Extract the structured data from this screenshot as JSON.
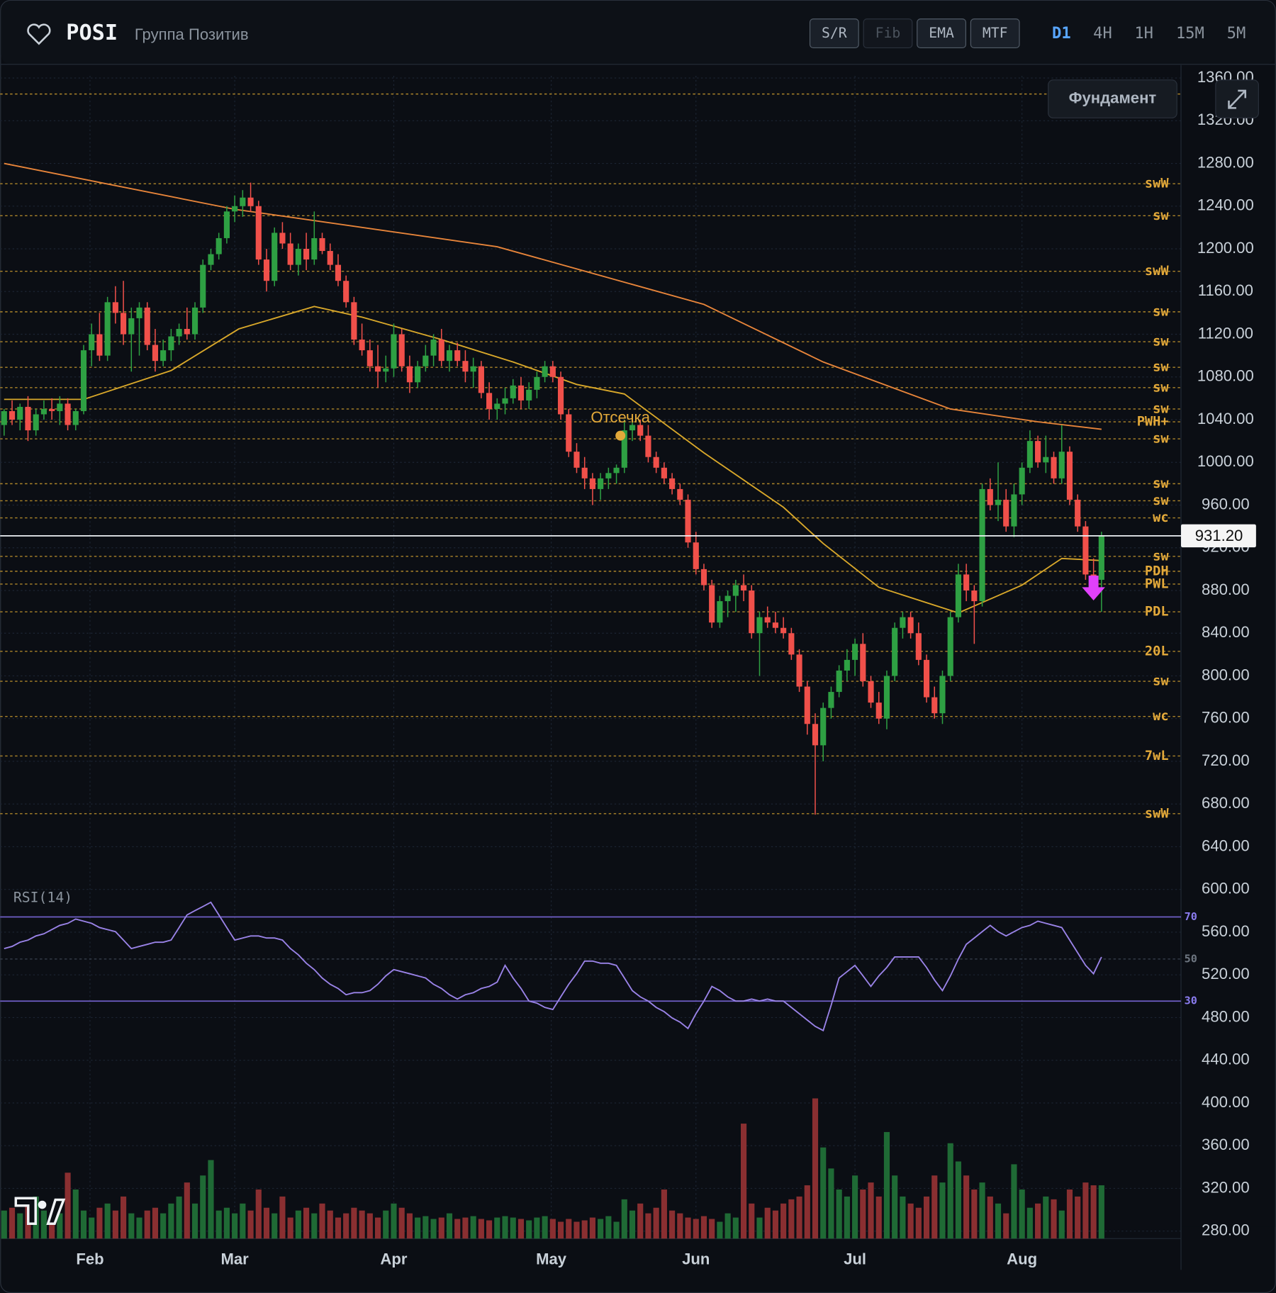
{
  "header": {
    "ticker": "POSI",
    "company": "Группа Позитив",
    "tools": [
      {
        "label": "S/R",
        "enabled": true
      },
      {
        "label": "Fib",
        "enabled": false
      },
      {
        "label": "EMA",
        "enabled": true
      },
      {
        "label": "MTF",
        "enabled": true
      }
    ],
    "timeframes": [
      {
        "label": "D1",
        "active": true
      },
      {
        "label": "4H",
        "active": false
      },
      {
        "label": "1H",
        "active": false
      },
      {
        "label": "15M",
        "active": false
      },
      {
        "label": "5M",
        "active": false
      }
    ],
    "fundament_button": "Фундамент"
  },
  "chart_data": {
    "type": "candlestick",
    "up_color": "#2ea043",
    "down_color": "#f0504a",
    "volume_up_color": "#1f6a35",
    "volume_down_color": "#8a2f31",
    "xlim": [
      -0.5,
      148
    ],
    "xticks": [
      {
        "value": 10.8,
        "label": "Feb"
      },
      {
        "value": 29,
        "label": "Mar"
      },
      {
        "value": 49,
        "label": "Apr"
      },
      {
        "value": 68.8,
        "label": "May"
      },
      {
        "value": 87,
        "label": "Jun"
      },
      {
        "value": 107,
        "label": "Jul"
      },
      {
        "value": 128,
        "label": "Aug"
      }
    ],
    "ylim": [
      273,
      1362
    ],
    "yticks": [
      {
        "value": 1360,
        "label": "1360.00"
      },
      {
        "value": 1320,
        "label": "1320.00"
      },
      {
        "value": 1280,
        "label": "1280.00"
      },
      {
        "value": 1240,
        "label": "1240.00"
      },
      {
        "value": 1200,
        "label": "1200.00"
      },
      {
        "value": 1160,
        "label": "1160.00"
      },
      {
        "value": 1120,
        "label": "1120.00"
      },
      {
        "value": 1080,
        "label": "1080.00"
      },
      {
        "value": 1040,
        "label": "1040.00"
      },
      {
        "value": 1000,
        "label": "1000.00"
      },
      {
        "value": 960,
        "label": "960.00"
      },
      {
        "value": 920,
        "label": "920.00"
      },
      {
        "value": 880,
        "label": "880.00"
      },
      {
        "value": 840,
        "label": "840.00"
      },
      {
        "value": 800,
        "label": "800.00"
      },
      {
        "value": 760,
        "label": "760.00"
      },
      {
        "value": 720,
        "label": "720.00"
      },
      {
        "value": 680,
        "label": "680.00"
      },
      {
        "value": 640,
        "label": "640.00"
      },
      {
        "value": 600,
        "label": "600.00"
      },
      {
        "value": 560,
        "label": "560.00"
      },
      {
        "value": 520,
        "label": "520.00"
      },
      {
        "value": 480,
        "label": "480.00"
      },
      {
        "value": 440,
        "label": "440.00"
      },
      {
        "value": 400,
        "label": "400.00"
      },
      {
        "value": 360,
        "label": "360.00"
      },
      {
        "value": 320,
        "label": "320.00"
      },
      {
        "value": 280,
        "label": "280.00"
      }
    ],
    "grid": true,
    "candles": [
      [
        1035,
        1050,
        1025,
        1048
      ],
      [
        1048,
        1058,
        1035,
        1040
      ],
      [
        1040,
        1055,
        1030,
        1052
      ],
      [
        1052,
        1062,
        1020,
        1030
      ],
      [
        1030,
        1050,
        1025,
        1045
      ],
      [
        1045,
        1058,
        1040,
        1050
      ],
      [
        1050,
        1060,
        1040,
        1048
      ],
      [
        1048,
        1062,
        1035,
        1055
      ],
      [
        1055,
        1060,
        1030,
        1035
      ],
      [
        1035,
        1050,
        1030,
        1048
      ],
      [
        1048,
        1110,
        1045,
        1105
      ],
      [
        1105,
        1130,
        1090,
        1120
      ],
      [
        1120,
        1140,
        1095,
        1100
      ],
      [
        1100,
        1155,
        1095,
        1150
      ],
      [
        1150,
        1165,
        1130,
        1140
      ],
      [
        1140,
        1170,
        1110,
        1120
      ],
      [
        1120,
        1145,
        1085,
        1135
      ],
      [
        1135,
        1150,
        1100,
        1145
      ],
      [
        1145,
        1150,
        1105,
        1110
      ],
      [
        1110,
        1125,
        1085,
        1095
      ],
      [
        1095,
        1115,
        1090,
        1105
      ],
      [
        1105,
        1125,
        1095,
        1118
      ],
      [
        1118,
        1130,
        1110,
        1125
      ],
      [
        1125,
        1145,
        1115,
        1120
      ],
      [
        1120,
        1150,
        1115,
        1145
      ],
      [
        1145,
        1190,
        1140,
        1185
      ],
      [
        1185,
        1200,
        1180,
        1195
      ],
      [
        1195,
        1215,
        1190,
        1210
      ],
      [
        1210,
        1240,
        1205,
        1235
      ],
      [
        1235,
        1250,
        1225,
        1240
      ],
      [
        1240,
        1255,
        1230,
        1248
      ],
      [
        1248,
        1262,
        1235,
        1240
      ],
      [
        1240,
        1245,
        1185,
        1190
      ],
      [
        1190,
        1200,
        1160,
        1170
      ],
      [
        1170,
        1220,
        1165,
        1215
      ],
      [
        1215,
        1225,
        1200,
        1205
      ],
      [
        1205,
        1215,
        1180,
        1185
      ],
      [
        1185,
        1205,
        1175,
        1200
      ],
      [
        1200,
        1215,
        1180,
        1190
      ],
      [
        1190,
        1235,
        1185,
        1210
      ],
      [
        1210,
        1215,
        1195,
        1198
      ],
      [
        1198,
        1205,
        1180,
        1185
      ],
      [
        1185,
        1195,
        1165,
        1170
      ],
      [
        1170,
        1175,
        1145,
        1150
      ],
      [
        1150,
        1155,
        1110,
        1115
      ],
      [
        1115,
        1130,
        1100,
        1105
      ],
      [
        1105,
        1115,
        1085,
        1090
      ],
      [
        1090,
        1110,
        1070,
        1085
      ],
      [
        1085,
        1100,
        1075,
        1088
      ],
      [
        1088,
        1130,
        1080,
        1120
      ],
      [
        1120,
        1125,
        1085,
        1090
      ],
      [
        1090,
        1100,
        1065,
        1075
      ],
      [
        1075,
        1095,
        1070,
        1090
      ],
      [
        1090,
        1110,
        1085,
        1100
      ],
      [
        1100,
        1120,
        1090,
        1115
      ],
      [
        1115,
        1125,
        1090,
        1095
      ],
      [
        1095,
        1110,
        1085,
        1105
      ],
      [
        1105,
        1112,
        1090,
        1095
      ],
      [
        1095,
        1105,
        1075,
        1085
      ],
      [
        1085,
        1098,
        1070,
        1090
      ],
      [
        1090,
        1095,
        1060,
        1065
      ],
      [
        1065,
        1075,
        1040,
        1050
      ],
      [
        1050,
        1060,
        1040,
        1055
      ],
      [
        1055,
        1070,
        1045,
        1060
      ],
      [
        1060,
        1078,
        1055,
        1072
      ],
      [
        1072,
        1080,
        1050,
        1058
      ],
      [
        1058,
        1075,
        1050,
        1068
      ],
      [
        1068,
        1085,
        1060,
        1080
      ],
      [
        1080,
        1095,
        1075,
        1090
      ],
      [
        1090,
        1095,
        1075,
        1080
      ],
      [
        1080,
        1085,
        1040,
        1045
      ],
      [
        1045,
        1050,
        1005,
        1010
      ],
      [
        1010,
        1018,
        990,
        995
      ],
      [
        995,
        1005,
        975,
        985
      ],
      [
        985,
        990,
        960,
        975
      ],
      [
        975,
        990,
        965,
        985
      ],
      [
        985,
        995,
        975,
        990
      ],
      [
        990,
        998,
        980,
        995
      ],
      [
        995,
        1040,
        990,
        1030
      ],
      [
        1030,
        1045,
        1020,
        1035
      ],
      [
        1035,
        1040,
        1020,
        1025
      ],
      [
        1025,
        1035,
        1000,
        1005
      ],
      [
        1005,
        1010,
        990,
        995
      ],
      [
        995,
        1000,
        980,
        985
      ],
      [
        985,
        990,
        970,
        975
      ],
      [
        975,
        980,
        960,
        965
      ],
      [
        965,
        970,
        920,
        925
      ],
      [
        925,
        935,
        895,
        900
      ],
      [
        900,
        905,
        880,
        885
      ],
      [
        885,
        890,
        845,
        850
      ],
      [
        850,
        875,
        845,
        870
      ],
      [
        870,
        880,
        855,
        875
      ],
      [
        875,
        890,
        860,
        885
      ],
      [
        885,
        895,
        870,
        880
      ],
      [
        880,
        885,
        835,
        840
      ],
      [
        840,
        860,
        800,
        855
      ],
      [
        855,
        865,
        845,
        850
      ],
      [
        850,
        860,
        840,
        845
      ],
      [
        845,
        855,
        835,
        840
      ],
      [
        840,
        845,
        815,
        820
      ],
      [
        820,
        825,
        785,
        790
      ],
      [
        790,
        795,
        745,
        755
      ],
      [
        755,
        765,
        670,
        735
      ],
      [
        735,
        775,
        720,
        770
      ],
      [
        770,
        790,
        760,
        785
      ],
      [
        785,
        810,
        780,
        805
      ],
      [
        805,
        825,
        795,
        815
      ],
      [
        815,
        835,
        800,
        830
      ],
      [
        830,
        840,
        790,
        795
      ],
      [
        795,
        800,
        770,
        775
      ],
      [
        775,
        785,
        755,
        760
      ],
      [
        760,
        805,
        750,
        800
      ],
      [
        800,
        850,
        795,
        845
      ],
      [
        845,
        860,
        835,
        855
      ],
      [
        855,
        860,
        835,
        840
      ],
      [
        840,
        850,
        810,
        815
      ],
      [
        815,
        820,
        775,
        780
      ],
      [
        780,
        790,
        760,
        765
      ],
      [
        765,
        805,
        755,
        800
      ],
      [
        800,
        860,
        795,
        855
      ],
      [
        855,
        905,
        850,
        895
      ],
      [
        895,
        905,
        870,
        880
      ],
      [
        880,
        885,
        830,
        870
      ],
      [
        870,
        980,
        865,
        975
      ],
      [
        975,
        985,
        955,
        960
      ],
      [
        960,
        1000,
        945,
        965
      ],
      [
        965,
        975,
        935,
        940
      ],
      [
        940,
        980,
        930,
        970
      ],
      [
        970,
        1000,
        960,
        995
      ],
      [
        995,
        1030,
        990,
        1020
      ],
      [
        1020,
        1025,
        995,
        1000
      ],
      [
        1000,
        1025,
        990,
        1005
      ],
      [
        1005,
        1010,
        980,
        985
      ],
      [
        985,
        1035,
        980,
        1010
      ],
      [
        1010,
        1015,
        960,
        965
      ],
      [
        965,
        970,
        935,
        940
      ],
      [
        940,
        945,
        890,
        895
      ],
      [
        895,
        910,
        880,
        890
      ],
      [
        890,
        935,
        860,
        931.2
      ]
    ],
    "volume": [
      20,
      22,
      18,
      25,
      30,
      20,
      15,
      18,
      47,
      35,
      20,
      15,
      22,
      25,
      20,
      30,
      18,
      15,
      20,
      22,
      18,
      25,
      30,
      40,
      25,
      45,
      56,
      20,
      22,
      18,
      25,
      20,
      35,
      22,
      18,
      30,
      15,
      20,
      22,
      18,
      25,
      20,
      15,
      18,
      22,
      20,
      18,
      15,
      20,
      25,
      22,
      18,
      15,
      16,
      14,
      15,
      18,
      14,
      15,
      16,
      14,
      13,
      15,
      16,
      15,
      14,
      13,
      15,
      16,
      14,
      12,
      14,
      12,
      13,
      15,
      14,
      16,
      12,
      28,
      20,
      25,
      18,
      22,
      35,
      20,
      18,
      15,
      14,
      16,
      14,
      12,
      18,
      15,
      82,
      25,
      15,
      22,
      20,
      25,
      28,
      30,
      38,
      100,
      65,
      50,
      35,
      30,
      45,
      35,
      40,
      30,
      76,
      45,
      30,
      25,
      22,
      30,
      45,
      40,
      68,
      55,
      45,
      35,
      40,
      30,
      25,
      18,
      53,
      35,
      22,
      25,
      30,
      28,
      20,
      35,
      30,
      40,
      38,
      38
    ],
    "moving_averages": [
      {
        "color": "#e8853a",
        "x": [
          0,
          29,
          62,
          88,
          103,
          119,
          130,
          138
        ],
        "values": [
          1280,
          1237,
          1202,
          1148,
          1094,
          1050,
          1038,
          1031
        ]
      },
      {
        "color": "#d9a82a",
        "x": [
          0,
          10,
          21,
          29.5,
          39,
          45,
          55,
          64,
          72,
          78,
          88,
          98,
          103,
          110,
          120,
          128,
          133,
          138
        ],
        "values": [
          1059,
          1059,
          1086,
          1125,
          1146,
          1136,
          1115,
          1094,
          1073,
          1064,
          1009,
          958,
          924,
          883,
          859,
          885,
          910,
          908
        ]
      }
    ],
    "levels": [
      {
        "value": 1345
      },
      {
        "label": "swW",
        "value": 1261
      },
      {
        "label": "sw",
        "value": 1231
      },
      {
        "label": "swW",
        "value": 1179
      },
      {
        "label": "sw",
        "value": 1141
      },
      {
        "label": "sw",
        "value": 1113
      },
      {
        "label": "sw",
        "value": 1089
      },
      {
        "label": "sw",
        "value": 1070
      },
      {
        "label": "sw",
        "value": 1050
      },
      {
        "label": "PWH+",
        "value": 1038
      },
      {
        "label": "sw",
        "value": 1022
      },
      {
        "label": "sw",
        "value": 980
      },
      {
        "label": "sw",
        "value": 964
      },
      {
        "label": "wc",
        "value": 948
      },
      {
        "label": "sw",
        "value": 912
      },
      {
        "label": "PDH",
        "value": 898
      },
      {
        "label": "PWL",
        "value": 886
      },
      {
        "label": "PDL",
        "value": 860
      },
      {
        "label": "20L",
        "value": 823
      },
      {
        "label": "sw",
        "value": 795
      },
      {
        "label": "wc",
        "value": 762
      },
      {
        "label": "7wL",
        "value": 725
      },
      {
        "label": "swW",
        "value": 671
      }
    ],
    "level_color": "#c99a2e",
    "last_price": {
      "value": 931.2,
      "label": "931.20"
    },
    "annotation": {
      "text": "Отсечка",
      "x": 77.5,
      "value": 1025,
      "color": "#e3a93a"
    },
    "signal": {
      "x": 137,
      "value": 880,
      "color": "#e040fb"
    },
    "rsi": {
      "label": "RSI(14)",
      "color": "#9a83e8",
      "ylim": [
        10,
        80
      ],
      "levels": [
        70,
        50,
        30
      ],
      "values": [
        55,
        56,
        58,
        59,
        61,
        62,
        64,
        66,
        67,
        69,
        68,
        67,
        65,
        64,
        63,
        59,
        55,
        56,
        57,
        58,
        58,
        59,
        65,
        71,
        73,
        75,
        77,
        71,
        65,
        59,
        60,
        61,
        61,
        60,
        60,
        59,
        55,
        52,
        48,
        45,
        41,
        38,
        36,
        33,
        34,
        34,
        35,
        38,
        42,
        45,
        44,
        43,
        42,
        41,
        38,
        36,
        33,
        31,
        33,
        34,
        36,
        37,
        39,
        47,
        41,
        36,
        30,
        29,
        27,
        26,
        32,
        38,
        43,
        49,
        49,
        48,
        48,
        47,
        41,
        35,
        32,
        30,
        27,
        25,
        22,
        20,
        17,
        24,
        30,
        37,
        35,
        32,
        30,
        30,
        31,
        30,
        31,
        30,
        30,
        27,
        24,
        21,
        18,
        16,
        28,
        41,
        44,
        47,
        42,
        37,
        42,
        46,
        51,
        51,
        51,
        51,
        46,
        40,
        35,
        42,
        50,
        57,
        60,
        63,
        66,
        63,
        61,
        63,
        65,
        66,
        68,
        67,
        66,
        65,
        59,
        53,
        47,
        43,
        51
      ]
    }
  }
}
